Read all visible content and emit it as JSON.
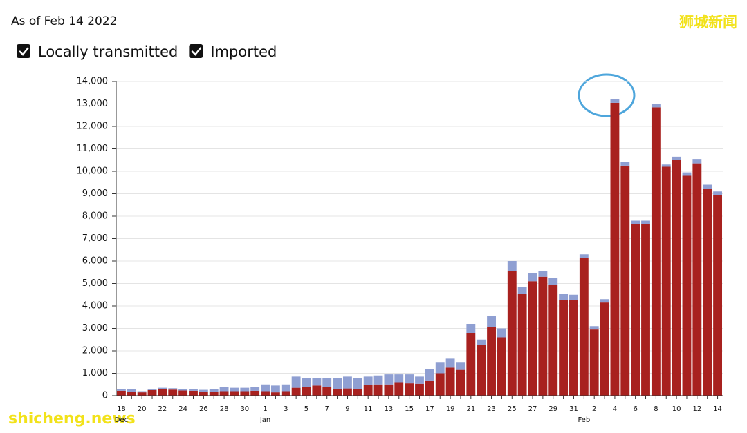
{
  "chart_data": {
    "type": "stacked_bar",
    "title": "As of Feb 14 2022",
    "watermarks": [
      "狮城新闻",
      "shicheng.news"
    ],
    "categories": [
      "18",
      null,
      "20",
      null,
      "22",
      null,
      "24",
      null,
      "26",
      null,
      "28",
      null,
      "30",
      null,
      "1",
      null,
      "3",
      null,
      "5",
      null,
      "7",
      null,
      "9",
      null,
      "11",
      null,
      "13",
      null,
      "15",
      null,
      "17",
      null,
      "19",
      null,
      "21",
      null,
      "23",
      null,
      "25",
      null,
      "27",
      null,
      "29",
      null,
      "31",
      null,
      "2",
      null,
      "4",
      null,
      "6",
      null,
      "8",
      null,
      "10",
      null,
      "12",
      null,
      "14"
    ],
    "x_groups": [
      {
        "label": "Dec",
        "start": 0
      },
      {
        "label": "Jan",
        "start": 14
      },
      {
        "label": "Feb",
        "start": 45
      }
    ],
    "series": [
      {
        "name": "Locally transmitted",
        "color": "#a8211f",
        "values": [
          220,
          180,
          150,
          250,
          300,
          270,
          230,
          220,
          180,
          180,
          200,
          200,
          200,
          220,
          200,
          150,
          200,
          350,
          400,
          450,
          400,
          300,
          320,
          300,
          480,
          500,
          500,
          600,
          550,
          530,
          680,
          1000,
          1250,
          1150,
          2800,
          2250,
          3050,
          2600,
          5550,
          4550,
          5100,
          5300,
          4950,
          4250,
          4250,
          6150,
          2950,
          4150,
          13050,
          10250,
          7650,
          7650,
          12850,
          10200,
          10500,
          9800,
          10350,
          9200,
          8950
        ]
      },
      {
        "name": "Imported",
        "color": "#8f9fd2",
        "values": [
          60,
          100,
          50,
          50,
          50,
          60,
          70,
          80,
          80,
          120,
          180,
          150,
          150,
          180,
          300,
          300,
          300,
          500,
          400,
          350,
          400,
          500,
          530,
          480,
          370,
          400,
          450,
          350,
          400,
          320,
          520,
          500,
          400,
          350,
          400,
          250,
          500,
          400,
          450,
          300,
          350,
          250,
          300,
          300,
          250,
          150,
          150,
          150,
          150,
          150,
          150,
          150,
          150,
          100,
          150,
          150,
          200,
          200,
          150
        ]
      }
    ],
    "ylim": [
      0,
      14000
    ],
    "yticks": [
      0,
      {
        "value": 1000,
        "label": "1,000"
      },
      {
        "value": 2000,
        "label": "2,000"
      },
      {
        "value": 3000,
        "label": "3,000"
      },
      {
        "value": 4000,
        "label": "4,000"
      },
      {
        "value": 5000,
        "label": "5,000"
      },
      {
        "value": 6000,
        "label": "6,000"
      },
      {
        "value": 7000,
        "label": "7,000"
      },
      {
        "value": 8000,
        "label": "8,000"
      },
      {
        "value": 9000,
        "label": "9,000"
      },
      {
        "value": 10000,
        "label": "10,000"
      },
      {
        "value": 11000,
        "label": "11,000"
      },
      {
        "value": 12000,
        "label": "12,000"
      },
      {
        "value": 13000,
        "label": "13,000"
      },
      {
        "value": 14000,
        "label": "14,000"
      }
    ],
    "grid": true
  }
}
